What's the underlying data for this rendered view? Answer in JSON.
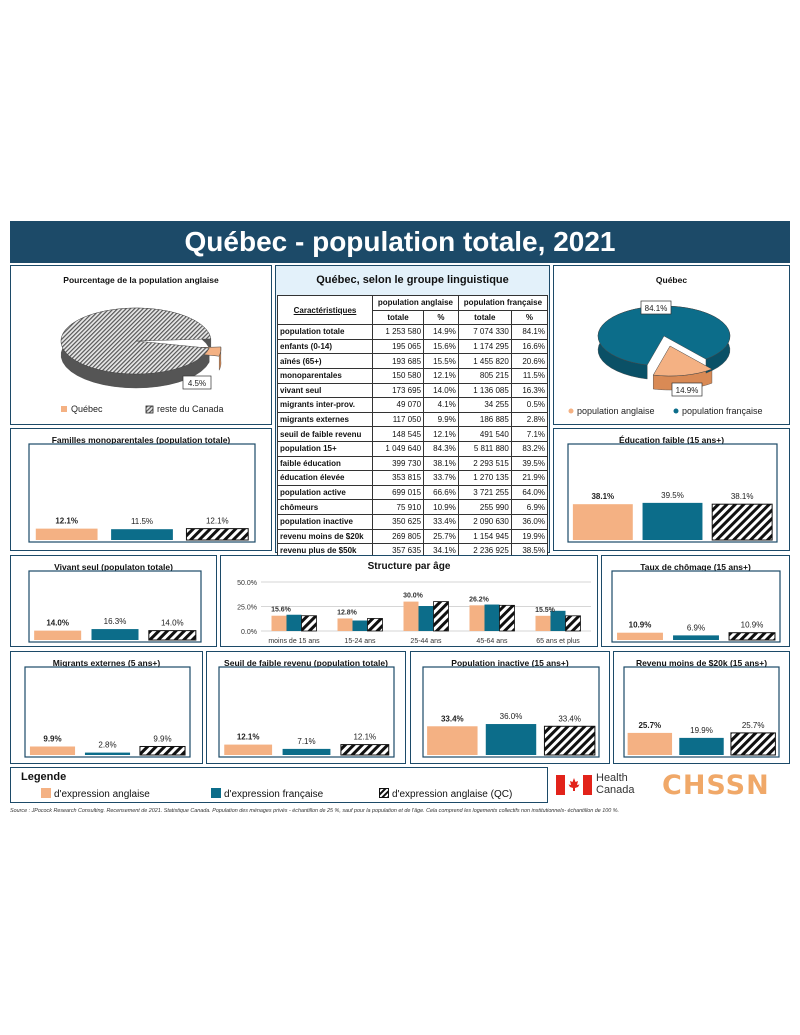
{
  "title": "Québec - population totale, 2021",
  "colors": {
    "anglais": "#f4b183",
    "francais": "#0c6d8a",
    "navy": "#1c4a68",
    "hatch": "#111111"
  },
  "table": {
    "title": "Québec, selon le groupe linguistique",
    "headers": {
      "characteristics": "Caractéristiques",
      "pop_anglaise": "population anglaise",
      "pop_francaise": "population française",
      "totale": "totale",
      "pct": "%"
    },
    "rows": [
      {
        "label": "population totale",
        "ang_total": "1 253 580",
        "ang_pct": "14.9%",
        "fr_total": "7 074 330",
        "fr_pct": "84.1%"
      },
      {
        "label": "enfants (0-14)",
        "ang_total": "195 065",
        "ang_pct": "15.6%",
        "fr_total": "1 174 295",
        "fr_pct": "16.6%"
      },
      {
        "label": "aînés (65+)",
        "ang_total": "193 685",
        "ang_pct": "15.5%",
        "fr_total": "1 455 820",
        "fr_pct": "20.6%"
      },
      {
        "label": "monoparentales",
        "ang_total": "150 580",
        "ang_pct": "12.1%",
        "fr_total": "805 215",
        "fr_pct": "11.5%"
      },
      {
        "label": "vivant seul",
        "ang_total": "173 695",
        "ang_pct": "14.0%",
        "fr_total": "1 136 085",
        "fr_pct": "16.3%"
      },
      {
        "label": "migrants inter-prov.",
        "ang_total": "49 070",
        "ang_pct": "4.1%",
        "fr_total": "34 255",
        "fr_pct": "0.5%"
      },
      {
        "label": "migrants externes",
        "ang_total": "117 050",
        "ang_pct": "9.9%",
        "fr_total": "186 885",
        "fr_pct": "2.8%"
      },
      {
        "label": "seuil de faible revenu",
        "ang_total": "148 545",
        "ang_pct": "12.1%",
        "fr_total": "491 540",
        "fr_pct": "7.1%"
      },
      {
        "label": "population 15+",
        "ang_total": "1 049 640",
        "ang_pct": "84.3%",
        "fr_total": "5 811 880",
        "fr_pct": "83.2%"
      },
      {
        "label": "faible éducation",
        "ang_total": "399 730",
        "ang_pct": "38.1%",
        "fr_total": "2 293 515",
        "fr_pct": "39.5%"
      },
      {
        "label": "éducation élevée",
        "ang_total": "353 815",
        "ang_pct": "33.7%",
        "fr_total": "1 270 135",
        "fr_pct": "21.9%"
      },
      {
        "label": "population active",
        "ang_total": "699 015",
        "ang_pct": "66.6%",
        "fr_total": "3 721 255",
        "fr_pct": "64.0%"
      },
      {
        "label": "chômeurs",
        "ang_total": "75 910",
        "ang_pct": "10.9%",
        "fr_total": "255 990",
        "fr_pct": "6.9%"
      },
      {
        "label": "population inactive",
        "ang_total": "350 625",
        "ang_pct": "33.4%",
        "fr_total": "2 090 630",
        "fr_pct": "36.0%"
      },
      {
        "label": "revenu moins de $20k",
        "ang_total": "269 805",
        "ang_pct": "25.7%",
        "fr_total": "1 154 945",
        "fr_pct": "19.9%"
      },
      {
        "label": "revenu plus de $50k",
        "ang_total": "357 635",
        "ang_pct": "34.1%",
        "fr_total": "2 236 925",
        "fr_pct": "38.5%"
      }
    ]
  },
  "chart_data": [
    {
      "id": "pie-anglaise",
      "type": "pie",
      "title": "Pourcentage de la population anglaise",
      "slices": [
        {
          "label": "Québec",
          "value": 4.5,
          "display": "4.5%"
        },
        {
          "label": "reste du Canada",
          "value": 95.5
        }
      ],
      "legend": [
        "Québec",
        "reste du Canada"
      ]
    },
    {
      "id": "pie-quebec",
      "type": "pie",
      "title": "Québec",
      "slices": [
        {
          "label": "population anglaise",
          "value": 14.9,
          "display": "14.9%"
        },
        {
          "label": "population française",
          "value": 84.1,
          "display": "84.1%"
        }
      ],
      "legend": [
        "population anglaise",
        "population française"
      ]
    },
    {
      "id": "monoparentales",
      "type": "bar",
      "title": "Familles monoparentales (population totale)",
      "values": [
        12.1,
        11.5,
        12.1
      ],
      "labels": [
        "12.1%",
        "11.5%",
        "12.1%"
      ],
      "ymax": 100
    },
    {
      "id": "education-faible",
      "type": "bar",
      "title": "Éducation faible (15 ans+)",
      "values": [
        38.1,
        39.5,
        38.1
      ],
      "labels": [
        "38.1%",
        "39.5%",
        "38.1%"
      ],
      "ymax": 100
    },
    {
      "id": "vivant-seul",
      "type": "bar",
      "title": "Vivant seul (populaton totale)",
      "values": [
        14.0,
        16.3,
        14.0
      ],
      "labels": [
        "14.0%",
        "16.3%",
        "14.0%"
      ],
      "ymax": 100
    },
    {
      "id": "structure-age",
      "type": "bar",
      "title": "Structure par âge",
      "categories": [
        "moins de 15 ans",
        "15-24 ans",
        "25-44 ans",
        "45-64 ans",
        "65 ans et plus"
      ],
      "yticks": [
        "50.0%",
        "25.0%",
        "0.0%"
      ],
      "ymax": 50,
      "series": [
        {
          "values": [
            15.6,
            12.8,
            30.0,
            26.2,
            15.5
          ],
          "labels": [
            "15.6%",
            "12.8%",
            "30.0%",
            "26.2%",
            "15.5%"
          ]
        },
        {
          "values": [
            16.6,
            10.7,
            25.5,
            27.0,
            20.6
          ]
        },
        {
          "values": [
            15.6,
            12.8,
            30.0,
            26.2,
            15.5
          ]
        }
      ]
    },
    {
      "id": "chomage",
      "type": "bar",
      "title": "Taux de chômage (15 ans+)",
      "values": [
        10.9,
        6.9,
        10.9
      ],
      "labels": [
        "10.9%",
        "6.9%",
        "10.9%"
      ],
      "ymax": 100
    },
    {
      "id": "migrants-externes",
      "type": "bar",
      "title": "Migrants externes (5 ans+)",
      "values": [
        9.9,
        2.8,
        9.9
      ],
      "labels": [
        "9.9%",
        "2.8%",
        "9.9%"
      ],
      "ymax": 100
    },
    {
      "id": "faible-revenu",
      "type": "bar",
      "title": "Seuil de faible revenu (population totale)",
      "values": [
        12.1,
        7.1,
        12.1
      ],
      "labels": [
        "12.1%",
        "7.1%",
        "12.1%"
      ],
      "ymax": 100
    },
    {
      "id": "population-inactive",
      "type": "bar",
      "title": "Population inactive (15 ans+)",
      "values": [
        33.4,
        36.0,
        33.4
      ],
      "labels": [
        "33.4%",
        "36.0%",
        "33.4%"
      ],
      "ymax": 100
    },
    {
      "id": "revenu-20k",
      "type": "bar",
      "title": "Revenu moins de $20k (15 ans+)",
      "values": [
        25.7,
        19.9,
        25.7
      ],
      "labels": [
        "25.7%",
        "19.9%",
        "25.7%"
      ],
      "ymax": 100
    }
  ],
  "legend": {
    "title": "Legende",
    "items": [
      "d'expression anglaise",
      "d'expression française",
      "d'expression anglaise (QC)"
    ]
  },
  "logos": {
    "health_canada": "Health Canada",
    "chssn": "CHSSN"
  },
  "source": "Source : JPocock Research Consulting. Recensement de 2021. Statistique Canada. Population des ménages privés - échantillon de 25 %, sauf pour la population et de l'âge. Cela comprend les logements collectifs non institutionnels- échantillon de 100 %."
}
